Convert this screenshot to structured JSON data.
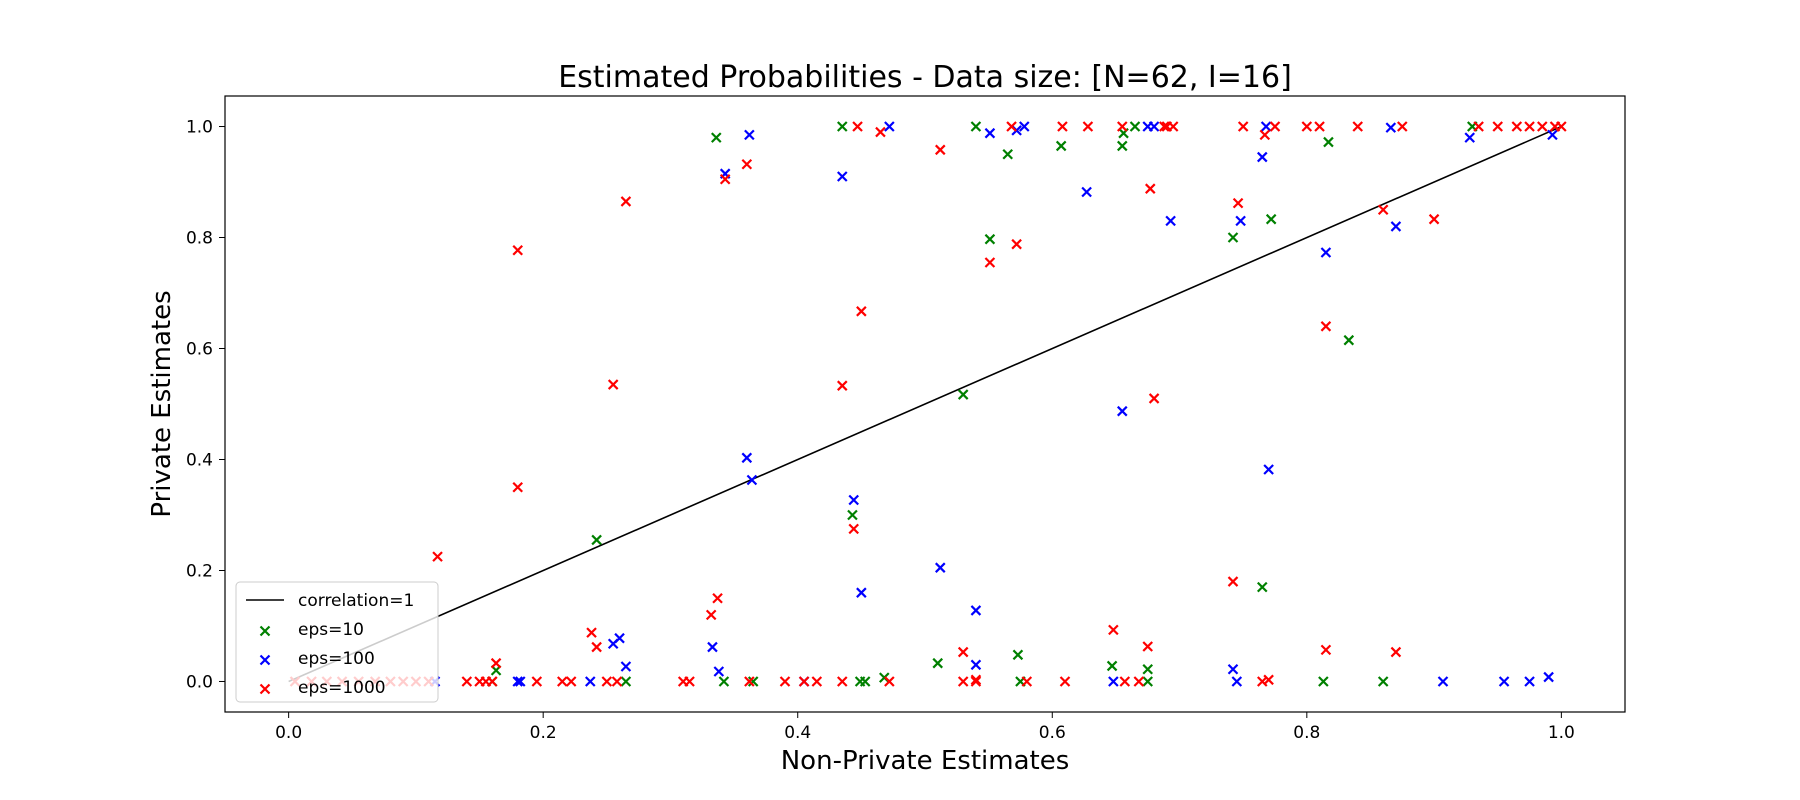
{
  "chart_data": {
    "type": "scatter",
    "title": "Estimated Probabilities - Data size: [N=62, I=16]",
    "xlabel": "Non-Private Estimates",
    "ylabel": "Private Estimates",
    "xlim": [
      -0.05,
      1.05
    ],
    "ylim": [
      -0.055,
      1.055
    ],
    "xticks": [
      "0.0",
      "0.2",
      "0.4",
      "0.6",
      "0.8",
      "1.0"
    ],
    "yticks": [
      "0.0",
      "0.2",
      "0.4",
      "0.6",
      "0.8",
      "1.0"
    ],
    "grid": false,
    "legend_position": "lower-left",
    "reference_line": {
      "name": "correlation=1",
      "color": "#000000",
      "x": [
        0,
        1
      ],
      "y": [
        0,
        1
      ]
    },
    "series": [
      {
        "name": "eps=10",
        "color": "#008000",
        "marker": "x",
        "points": [
          [
            0.16,
            0.0
          ],
          [
            0.163,
            0.02
          ],
          [
            0.242,
            0.255
          ],
          [
            0.265,
            0.0
          ],
          [
            0.336,
            0.98
          ],
          [
            0.342,
            0.0
          ],
          [
            0.365,
            0.0
          ],
          [
            0.435,
            1.0
          ],
          [
            0.443,
            0.3
          ],
          [
            0.449,
            0.0
          ],
          [
            0.453,
            0.0
          ],
          [
            0.468,
            0.007
          ],
          [
            0.51,
            0.033
          ],
          [
            0.53,
            0.517
          ],
          [
            0.54,
            1.0
          ],
          [
            0.551,
            0.797
          ],
          [
            0.565,
            0.95
          ],
          [
            0.573,
            0.048
          ],
          [
            0.575,
            0.0
          ],
          [
            0.607,
            0.965
          ],
          [
            0.647,
            0.028
          ],
          [
            0.655,
            0.965
          ],
          [
            0.656,
            0.988
          ],
          [
            0.665,
            1.0
          ],
          [
            0.675,
            0.022
          ],
          [
            0.675,
            0.0
          ],
          [
            0.742,
            0.8
          ],
          [
            0.765,
            0.17
          ],
          [
            0.772,
            0.833
          ],
          [
            0.813,
            0.0
          ],
          [
            0.817,
            0.972
          ],
          [
            0.833,
            0.615
          ],
          [
            0.86,
            0.0
          ],
          [
            0.93,
            1.0
          ]
        ]
      },
      {
        "name": "eps=100",
        "color": "#0000ff",
        "marker": "x",
        "points": [
          [
            0.115,
            0.0
          ],
          [
            0.18,
            0.0
          ],
          [
            0.182,
            0.0
          ],
          [
            0.237,
            0.0
          ],
          [
            0.255,
            0.068
          ],
          [
            0.26,
            0.078
          ],
          [
            0.265,
            0.027
          ],
          [
            0.333,
            0.062
          ],
          [
            0.338,
            0.018
          ],
          [
            0.343,
            0.915
          ],
          [
            0.36,
            0.403
          ],
          [
            0.362,
            0.985
          ],
          [
            0.364,
            0.363
          ],
          [
            0.405,
            0.0
          ],
          [
            0.435,
            0.91
          ],
          [
            0.444,
            0.327
          ],
          [
            0.45,
            0.16
          ],
          [
            0.472,
            1.0
          ],
          [
            0.512,
            0.205
          ],
          [
            0.54,
            0.128
          ],
          [
            0.54,
            0.03
          ],
          [
            0.551,
            0.988
          ],
          [
            0.572,
            0.993
          ],
          [
            0.578,
            1.0
          ],
          [
            0.627,
            0.882
          ],
          [
            0.648,
            0.0
          ],
          [
            0.655,
            0.487
          ],
          [
            0.675,
            1.0
          ],
          [
            0.68,
            1.0
          ],
          [
            0.693,
            0.83
          ],
          [
            0.742,
            0.022
          ],
          [
            0.745,
            0.0
          ],
          [
            0.748,
            0.83
          ],
          [
            0.765,
            0.945
          ],
          [
            0.768,
            1.0
          ],
          [
            0.77,
            0.382
          ],
          [
            0.815,
            0.773
          ],
          [
            0.866,
            0.998
          ],
          [
            0.87,
            0.82
          ],
          [
            0.907,
            0.0
          ],
          [
            0.928,
            0.98
          ],
          [
            0.955,
            0.0
          ],
          [
            0.975,
            0.0
          ],
          [
            0.99,
            0.008
          ],
          [
            0.993,
            0.985
          ]
        ]
      },
      {
        "name": "eps=1000",
        "color": "#ff0000",
        "marker": "x",
        "points": [
          [
            0.005,
            0.0
          ],
          [
            0.018,
            0.0
          ],
          [
            0.03,
            0.0
          ],
          [
            0.042,
            0.0
          ],
          [
            0.055,
            0.0
          ],
          [
            0.068,
            0.0
          ],
          [
            0.08,
            0.0
          ],
          [
            0.09,
            0.0
          ],
          [
            0.1,
            0.0
          ],
          [
            0.11,
            0.0
          ],
          [
            0.117,
            0.225
          ],
          [
            0.14,
            0.0
          ],
          [
            0.15,
            0.0
          ],
          [
            0.155,
            0.0
          ],
          [
            0.16,
            0.0
          ],
          [
            0.163,
            0.033
          ],
          [
            0.18,
            0.777
          ],
          [
            0.18,
            0.35
          ],
          [
            0.195,
            0.0
          ],
          [
            0.215,
            0.0
          ],
          [
            0.222,
            0.0
          ],
          [
            0.238,
            0.088
          ],
          [
            0.242,
            0.062
          ],
          [
            0.25,
            0.0
          ],
          [
            0.255,
            0.535
          ],
          [
            0.258,
            0.0
          ],
          [
            0.265,
            0.865
          ],
          [
            0.31,
            0.0
          ],
          [
            0.315,
            0.0
          ],
          [
            0.332,
            0.12
          ],
          [
            0.337,
            0.15
          ],
          [
            0.343,
            0.905
          ],
          [
            0.36,
            0.932
          ],
          [
            0.362,
            0.0
          ],
          [
            0.39,
            0.0
          ],
          [
            0.405,
            0.0
          ],
          [
            0.415,
            0.0
          ],
          [
            0.435,
            0.533
          ],
          [
            0.435,
            0.0
          ],
          [
            0.444,
            0.275
          ],
          [
            0.447,
            1.0
          ],
          [
            0.45,
            0.667
          ],
          [
            0.465,
            0.99
          ],
          [
            0.472,
            0.0
          ],
          [
            0.512,
            0.958
          ],
          [
            0.53,
            0.053
          ],
          [
            0.53,
            0.0
          ],
          [
            0.54,
            0.0
          ],
          [
            0.54,
            0.003
          ],
          [
            0.551,
            0.755
          ],
          [
            0.568,
            1.0
          ],
          [
            0.572,
            0.788
          ],
          [
            0.58,
            0.0
          ],
          [
            0.608,
            1.0
          ],
          [
            0.61,
            0.0
          ],
          [
            0.628,
            1.0
          ],
          [
            0.648,
            0.093
          ],
          [
            0.655,
            1.0
          ],
          [
            0.657,
            0.0
          ],
          [
            0.668,
            0.0
          ],
          [
            0.675,
            0.063
          ],
          [
            0.677,
            0.888
          ],
          [
            0.68,
            0.51
          ],
          [
            0.688,
            1.0
          ],
          [
            0.69,
            1.0
          ],
          [
            0.695,
            1.0
          ],
          [
            0.742,
            0.18
          ],
          [
            0.746,
            0.862
          ],
          [
            0.75,
            1.0
          ],
          [
            0.765,
            0.0
          ],
          [
            0.767,
            0.985
          ],
          [
            0.77,
            0.003
          ],
          [
            0.775,
            1.0
          ],
          [
            0.8,
            1.0
          ],
          [
            0.81,
            1.0
          ],
          [
            0.815,
            0.057
          ],
          [
            0.815,
            0.64
          ],
          [
            0.84,
            1.0
          ],
          [
            0.86,
            0.85
          ],
          [
            0.87,
            0.053
          ],
          [
            0.875,
            1.0
          ],
          [
            0.9,
            0.833
          ],
          [
            0.935,
            1.0
          ],
          [
            0.95,
            1.0
          ],
          [
            0.965,
            1.0
          ],
          [
            0.975,
            1.0
          ],
          [
            0.985,
            1.0
          ],
          [
            0.995,
            1.0
          ],
          [
            1.0,
            1.0
          ]
        ]
      }
    ]
  }
}
